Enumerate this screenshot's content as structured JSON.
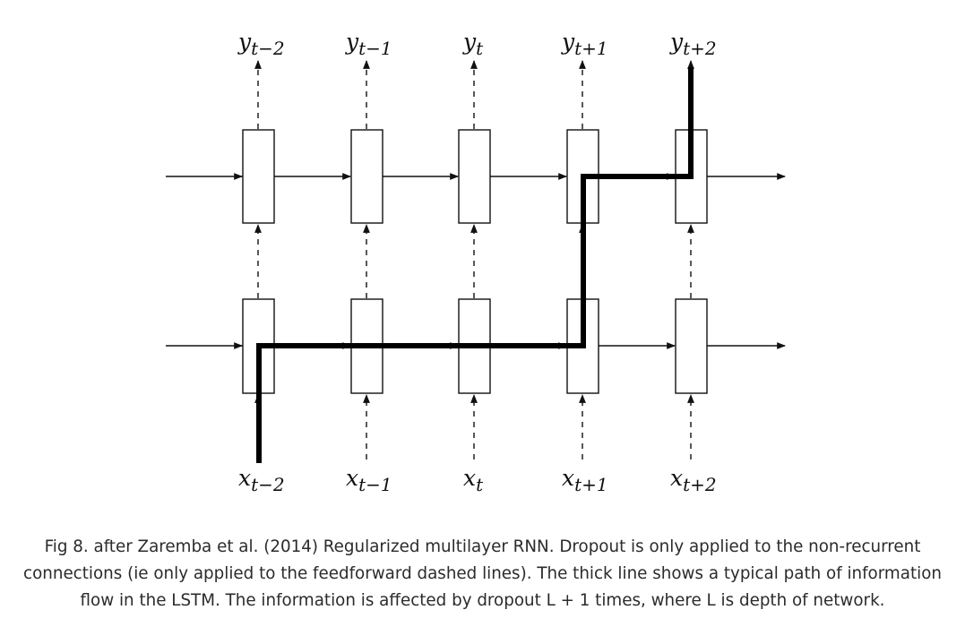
{
  "figure": {
    "output_labels": [
      {
        "base": "y",
        "sub": "t−2"
      },
      {
        "base": "y",
        "sub": "t−1"
      },
      {
        "base": "y",
        "sub": "t"
      },
      {
        "base": "y",
        "sub": "t+1"
      },
      {
        "base": "y",
        "sub": "t+2"
      }
    ],
    "input_labels": [
      {
        "base": "x",
        "sub": "t−2"
      },
      {
        "base": "x",
        "sub": "t−1"
      },
      {
        "base": "x",
        "sub": "t"
      },
      {
        "base": "x",
        "sub": "t+1"
      },
      {
        "base": "x",
        "sub": "t+2"
      }
    ],
    "layers": 2,
    "timesteps": 5,
    "colors": {
      "line": "#111111",
      "box_fill": "#ffffff",
      "caption_text": "#2b2b2b"
    }
  },
  "caption": {
    "line1": "Fig 8. after Zaremba et al. (2014) Regularized multilayer RNN. Dropout is only applied to the non-recurrent",
    "line2": "connections (ie only applied to the feedforward dashed lines). The thick line shows a typical path of information",
    "line3": "flow in the LSTM. The information is affected by dropout L + 1 times, where L is depth of network."
  }
}
